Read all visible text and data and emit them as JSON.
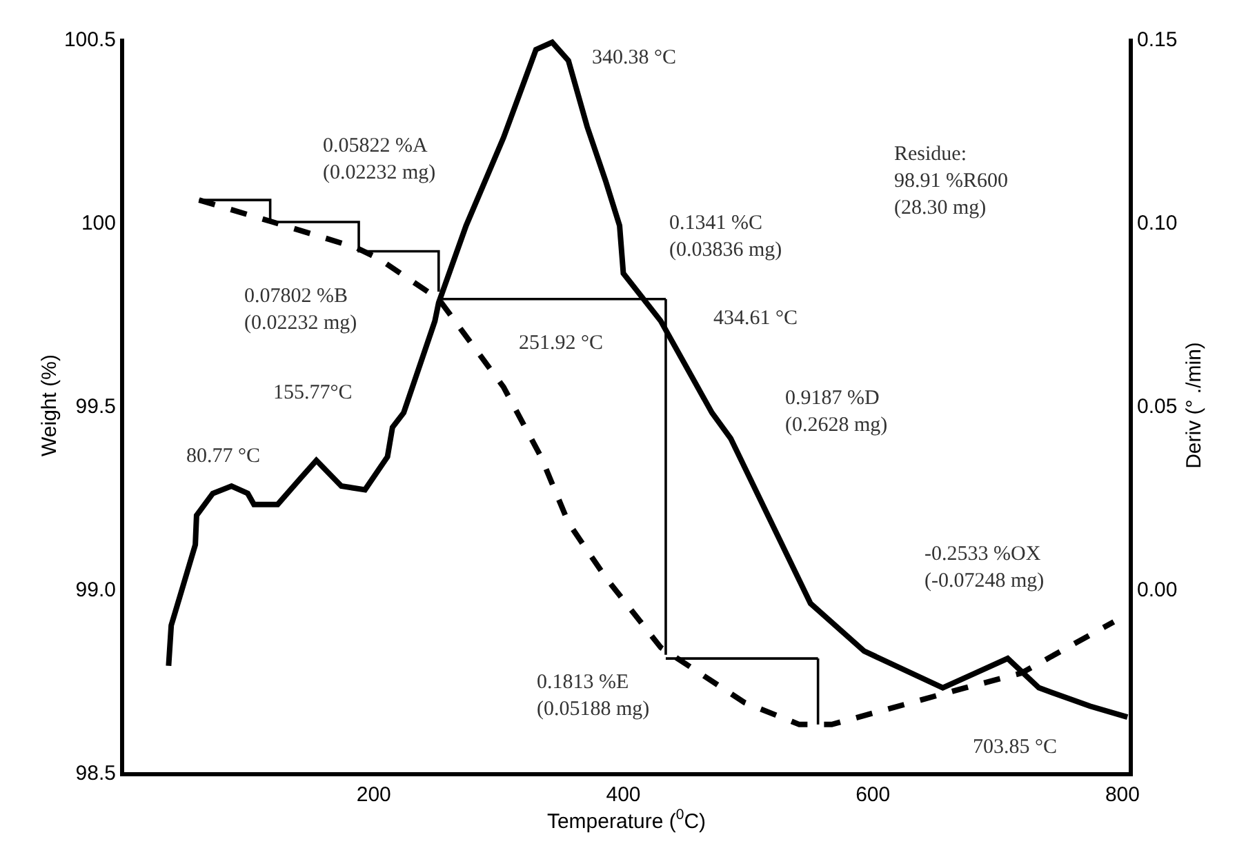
{
  "chart_data": {
    "type": "line",
    "xlabel": "Temperature ($^{0}$C)",
    "ylabel": "Weight (%)",
    "y2label": "Deriv (° ./min)",
    "xlim": [
      0,
      805
    ],
    "xticks": [
      200,
      400,
      600,
      800
    ],
    "ylim": [
      98.5,
      100.5
    ],
    "yticks": [
      98.5,
      {
        "value": 99,
        "label": "99.0"
      },
      99.5,
      100,
      100.5
    ],
    "y2lim": [
      -0.05,
      0.15
    ],
    "y2ticks": [
      {
        "value": 0,
        "label": "0.00"
      },
      0.05,
      {
        "value": 0.1,
        "label": "0.10"
      },
      0.15
    ],
    "grid": false,
    "series": [
      {
        "axis": "y",
        "color": "#000000",
        "line_style": "dashed",
        "x": [
          60,
          119,
          186,
          204,
          252,
          304,
          334,
          356,
          386,
          430,
          497,
          541,
          567,
          674,
          719,
          793
        ],
        "values": [
          100.06,
          100.0,
          99.93,
          99.9,
          99.79,
          99.55,
          99.36,
          99.18,
          99.03,
          98.84,
          98.69,
          98.63,
          98.63,
          98.73,
          98.77,
          98.91
        ]
      },
      {
        "axis": "y2",
        "color": "#000000",
        "line_style": "solid",
        "x": [
          35.6,
          37.7,
          57,
          58,
          71,
          86,
          99,
          104,
          123,
          141,
          154,
          174,
          193,
          211,
          215,
          224,
          249,
          252,
          274,
          304,
          330,
          343,
          356,
          371,
          386,
          397,
          400,
          430,
          471,
          486,
          550,
          593,
          656,
          682,
          708,
          733,
          774,
          804
        ],
        "values": [
          -0.021,
          -0.01,
          0.012,
          0.02,
          0.026,
          0.028,
          0.026,
          0.023,
          0.023,
          0.03,
          0.035,
          0.028,
          0.027,
          0.036,
          0.044,
          0.048,
          0.073,
          0.078,
          0.099,
          0.123,
          0.147,
          0.149,
          0.144,
          0.126,
          0.111,
          0.099,
          0.086,
          0.073,
          0.048,
          0.041,
          -0.004,
          -0.017,
          -0.027,
          -0.023,
          -0.019,
          -0.027,
          -0.032,
          -0.035
        ]
      },
      {
        "type": "step",
        "axis": "y",
        "color": "#000000",
        "line_style": "solid",
        "x": [
          60,
          117,
          188,
          252
        ],
        "values": [
          100.06,
          100.0,
          99.92,
          99.81
        ]
      },
      {
        "axis": "y",
        "color": "#000000",
        "line_style": "solid",
        "x": [
          252,
          434
        ],
        "values": [
          99.79,
          99.79
        ]
      },
      {
        "axis": "y",
        "color": "#000000",
        "line_style": "solid",
        "x": [
          434,
          434
        ],
        "values": [
          99.79,
          98.82
        ]
      },
      {
        "axis": "y",
        "color": "#000000",
        "line_style": "solid",
        "x": [
          434,
          556
        ],
        "values": [
          98.81,
          98.81
        ]
      },
      {
        "axis": "y",
        "color": "#000000",
        "line_style": "solid",
        "x": [
          556,
          556
        ],
        "values": [
          98.81,
          98.63
        ]
      }
    ],
    "annotations": [
      "340.38 °C",
      "0.05822 %A\n(0.02232 mg)",
      "0.07802 %B\n(0.02232 mg)",
      "251.92 °C",
      "155.77°C",
      "80.77 °C",
      "0.1341 %C\n(0.03836 mg)",
      "434.61 °C",
      "Residue:\n98.91 %R600\n(28.30 mg)",
      "0.9187 %D\n(0.2628 mg)",
      "-0.2533 %OX\n(-0.07248 mg)",
      "0.1813 %E\n(0.05188 mg)",
      "703.85 °C"
    ]
  }
}
